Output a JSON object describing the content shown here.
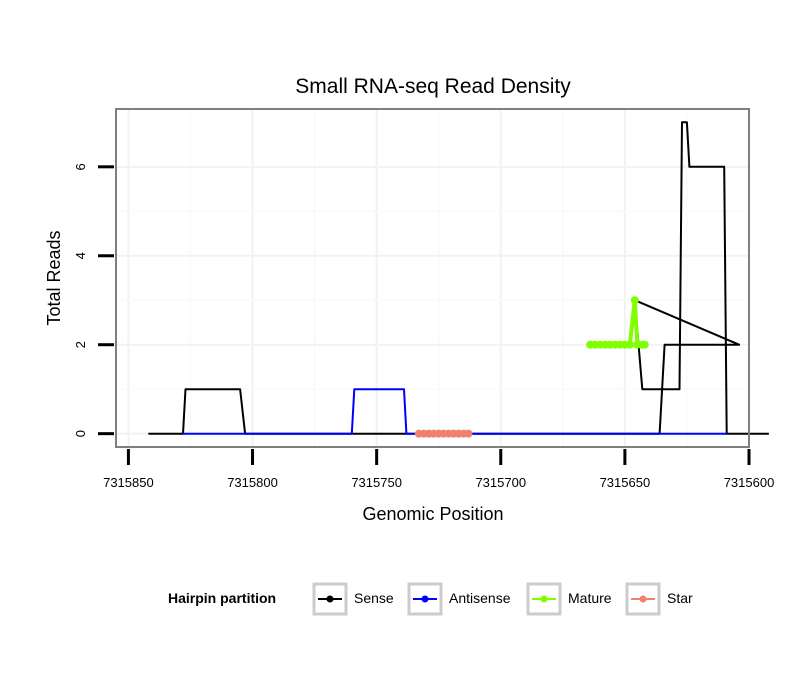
{
  "chart_data": {
    "type": "line",
    "title": "Small RNA-seq Read Density",
    "xlabel": "Genomic Position",
    "ylabel": "Total Reads",
    "xlim": [
      7315855,
      7315600
    ],
    "ylim": [
      -0.3,
      7.3
    ],
    "x_reversed": true,
    "xticks": [
      7315850,
      7315800,
      7315750,
      7315700,
      7315650,
      7315600
    ],
    "xtick_labels": [
      "7315850",
      "7315800",
      "7315750",
      "7315700",
      "7315650",
      "7315600"
    ],
    "yticks": [
      0,
      2,
      4,
      6
    ],
    "ytick_labels": [
      "0",
      "2",
      "4",
      "6"
    ],
    "grid": true,
    "legend_position": "bottom",
    "legend_title": "Hairpin partition",
    "series": [
      {
        "name": "Sense",
        "color": "#000000",
        "points": [
          [
            7315842,
            0
          ],
          [
            7315828,
            0
          ],
          [
            7315827,
            1
          ],
          [
            7315805,
            1
          ],
          [
            7315803,
            0
          ],
          [
            7315636,
            0
          ],
          [
            7315634,
            2
          ],
          [
            7315628,
            2
          ],
          [
            7315626,
            2
          ],
          [
            7315624,
            2
          ],
          [
            7315622,
            2
          ],
          [
            7315620,
            2
          ],
          [
            7315618,
            2
          ],
          [
            7315616,
            2
          ],
          [
            7315614,
            2
          ],
          [
            7315612,
            2
          ],
          [
            7315610,
            2
          ],
          [
            7315608,
            2
          ],
          [
            7315606,
            2
          ],
          [
            7315604,
            2
          ],
          [
            7315646,
            3
          ],
          [
            7315643,
            1
          ],
          [
            7315628,
            1
          ],
          [
            7315627,
            7
          ],
          [
            7315625,
            7
          ],
          [
            7315624,
            6
          ],
          [
            7315610,
            6
          ],
          [
            7315609,
            0
          ],
          [
            7315592,
            0
          ]
        ]
      },
      {
        "name": "Antisense",
        "color": "#0000ff",
        "points": [
          [
            7315828,
            0
          ],
          [
            7315760,
            0
          ],
          [
            7315759,
            1
          ],
          [
            7315739,
            1
          ],
          [
            7315738,
            0
          ],
          [
            7315643,
            0
          ],
          [
            7315609,
            0
          ]
        ]
      },
      {
        "name": "Mature",
        "color": "#7fff00",
        "points": [
          [
            7315664,
            2
          ],
          [
            7315662,
            2
          ],
          [
            7315660,
            2
          ],
          [
            7315658,
            2
          ],
          [
            7315656,
            2
          ],
          [
            7315654,
            2
          ],
          [
            7315652,
            2
          ],
          [
            7315650,
            2
          ],
          [
            7315648,
            2
          ],
          [
            7315646,
            3
          ],
          [
            7315645,
            2
          ],
          [
            7315643,
            2
          ],
          [
            7315642,
            2
          ]
        ]
      },
      {
        "name": "Star",
        "color": "#f08070",
        "points": [
          [
            7315733,
            0
          ],
          [
            7315731,
            0
          ],
          [
            7315729,
            0
          ],
          [
            7315727,
            0
          ],
          [
            7315725,
            0
          ],
          [
            7315723,
            0
          ],
          [
            7315721,
            0
          ],
          [
            7315719,
            0
          ],
          [
            7315717,
            0
          ],
          [
            7315715,
            0
          ],
          [
            7315713,
            0
          ]
        ]
      }
    ]
  }
}
